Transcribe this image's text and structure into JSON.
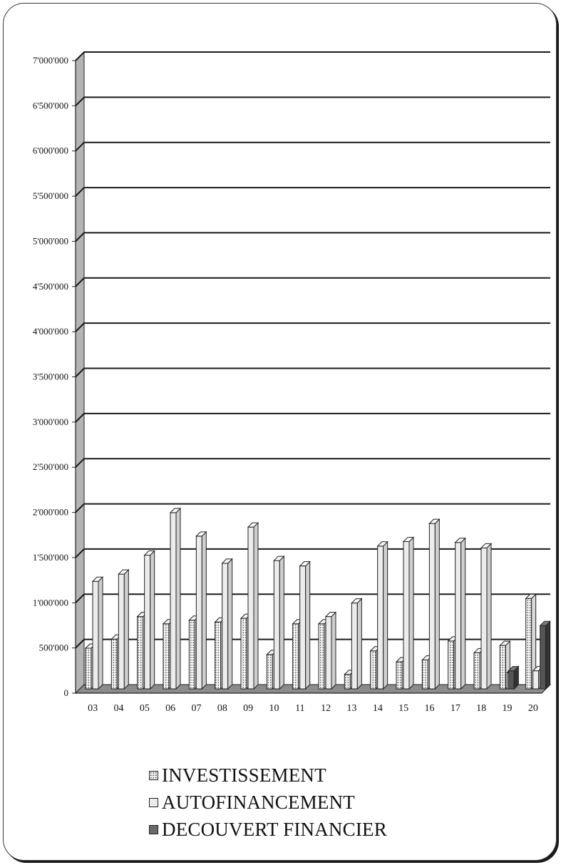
{
  "chart_data": {
    "type": "bar",
    "categories": [
      "03",
      "04",
      "05",
      "06",
      "07",
      "08",
      "09",
      "10",
      "11",
      "12",
      "13",
      "14",
      "15",
      "16",
      "17",
      "18",
      "19",
      "20"
    ],
    "y_tick_labels": [
      "0",
      "500'000",
      "1'000'000",
      "1'500'000",
      "2'000'000",
      "2'500'000",
      "3'000'000",
      "3'500'000",
      "4'000'000",
      "4'500'000",
      "5'000'000",
      "5'500'000",
      "6'000'000",
      "6'500'000",
      "7'000'000"
    ],
    "ylim": [
      0,
      7000000
    ],
    "grid": true,
    "legend_position": "bottom",
    "series": [
      {
        "name": "INVESTISSEMENT",
        "values": [
          450000,
          550000,
          800000,
          720000,
          760000,
          740000,
          780000,
          380000,
          720000,
          720000,
          160000,
          420000,
          300000,
          320000,
          530000,
          400000,
          480000,
          1000000
        ]
      },
      {
        "name": "AUTOFINANCEMENT",
        "values": [
          1190000,
          1270000,
          1480000,
          1950000,
          1690000,
          1390000,
          1790000,
          1420000,
          1360000,
          800000,
          950000,
          1580000,
          1630000,
          1830000,
          1620000,
          1560000,
          180000,
          200000
        ]
      },
      {
        "name": "DECOUVERT FINANCIER",
        "values": [
          0,
          0,
          0,
          0,
          0,
          0,
          0,
          0,
          0,
          0,
          0,
          0,
          0,
          0,
          0,
          0,
          200000,
          700000
        ]
      }
    ]
  },
  "colors": {
    "gridline": "#1a1a1a",
    "wall_side": "#b4b4b4",
    "floor": "#8c8c8c",
    "light_bar": "#ececec",
    "dark_bar": "#555555"
  }
}
